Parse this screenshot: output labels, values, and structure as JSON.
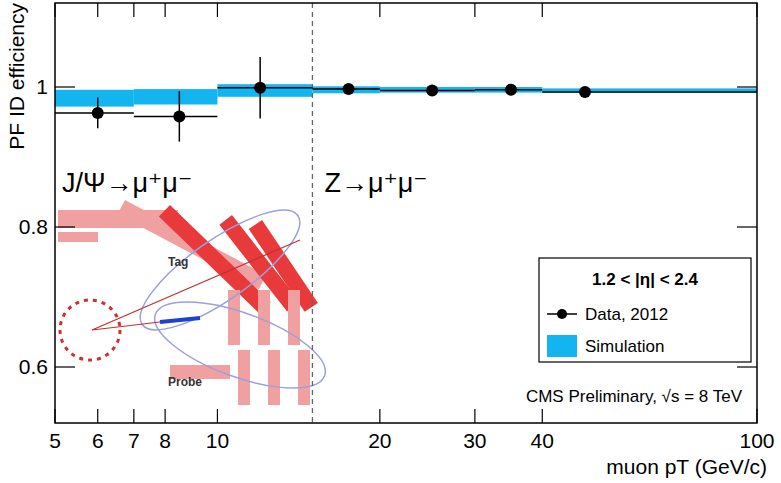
{
  "chart_data": {
    "type": "scatter",
    "x_label": "muon pT (GeV/c)",
    "y_label": "PF ID efficiency",
    "log": "x",
    "grid": false,
    "legend": "right",
    "xlim": [
      5,
      100
    ],
    "xticks": [
      5,
      6,
      7,
      8,
      10,
      20,
      30,
      40,
      100
    ],
    "ylim": [
      0.52,
      1.12
    ],
    "yticks": [
      0.6,
      0.8,
      1
    ],
    "vline": 15,
    "legend_title": "1.2 < |η| < 2.4",
    "annotations": [
      "J/Ψ→μ⁺μ⁻",
      "Z→μ⁺μ⁻",
      "CMS Preliminary, √s = 8 TeV",
      "Tag",
      "Probe"
    ],
    "series": [
      {
        "name": "Data, 2012",
        "type": "scatter",
        "color": "#000000",
        "marker": "circle",
        "x": [
          6,
          8.5,
          12,
          17.5,
          25,
          35,
          48
        ],
        "x_min": [
          5,
          7,
          10,
          15,
          20,
          30,
          40
        ],
        "x_max": [
          7,
          10,
          15,
          20,
          30,
          40,
          100
        ],
        "values": [
          0.963,
          0.958,
          0.999,
          0.997,
          0.995,
          0.996,
          0.993
        ],
        "errors": [
          0.022,
          0.036,
          0.044,
          0.004,
          0.003,
          0.003,
          0.003
        ]
      },
      {
        "name": "Simulation",
        "type": "band",
        "color": "#12b5f0",
        "bins": [
          5,
          7,
          10,
          15,
          20,
          30,
          40,
          100
        ],
        "values": [
          0.984,
          0.986,
          0.995,
          0.996,
          0.996,
          0.996,
          0.995
        ],
        "errors": [
          0.012,
          0.011,
          0.009,
          0.005,
          0.004,
          0.004,
          0.003
        ]
      }
    ]
  }
}
